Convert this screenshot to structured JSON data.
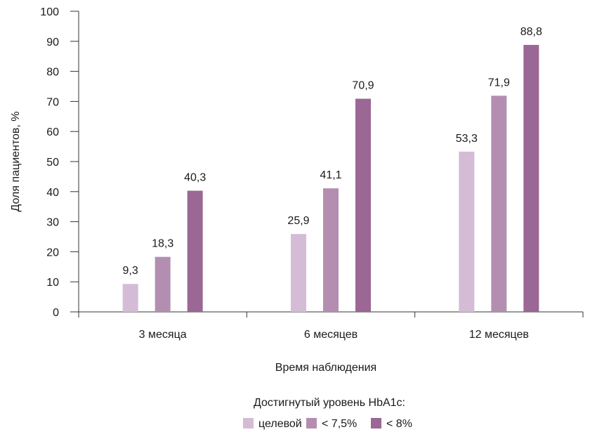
{
  "chart_data": {
    "type": "bar",
    "categories": [
      "3 месяца",
      "6 месяцев",
      "12 месяцев"
    ],
    "series": [
      {
        "name": "целевой",
        "values": [
          9.3,
          25.9,
          53.3
        ],
        "labels": [
          "9,3",
          "25,9",
          "53,3"
        ],
        "color": "#d4bcd6"
      },
      {
        "name": "< 7,5%",
        "values": [
          18.3,
          41.1,
          71.9
        ],
        "labels": [
          "18,3",
          "41,1",
          "71,9"
        ],
        "color": "#b48eb1"
      },
      {
        "name": "< 8%",
        "values": [
          40.3,
          70.9,
          88.8
        ],
        "labels": [
          "40,3",
          "70,9",
          "88,8"
        ],
        "color": "#9b6795"
      }
    ],
    "xlabel": "Время наблюдения",
    "ylabel": "Доля пациентов, %",
    "ylim": [
      0,
      100
    ],
    "yticks": [
      0,
      10,
      20,
      30,
      40,
      50,
      60,
      70,
      80,
      90,
      100
    ],
    "grid": false,
    "legend": {
      "title": "Достигнутый уровень HbA1c:",
      "position": "bottom"
    }
  }
}
